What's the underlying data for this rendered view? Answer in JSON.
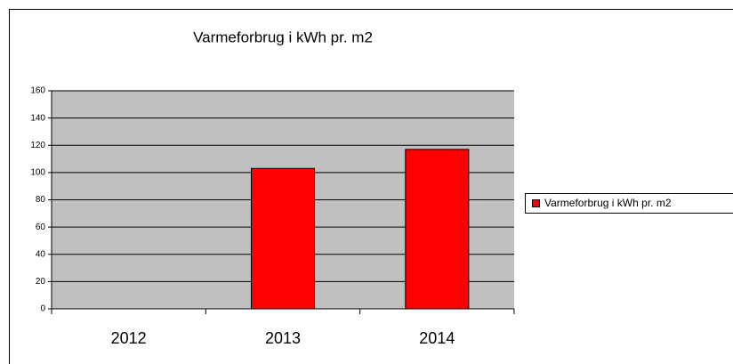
{
  "chart_data": {
    "type": "bar",
    "title": "Varmeforbrug i kWh pr. m2",
    "categories": [
      "2012",
      "2013",
      "2014"
    ],
    "series": [
      {
        "name": "Varmeforbrug i kWh pr. m2",
        "color": "#ff0000",
        "values": [
          null,
          103,
          117
        ]
      }
    ],
    "ylim": [
      0,
      160
    ],
    "yticks": [
      0,
      20,
      40,
      60,
      80,
      100,
      120,
      140,
      160
    ],
    "grid": true,
    "plot_background": "#c0c0c0",
    "legend": "right"
  }
}
